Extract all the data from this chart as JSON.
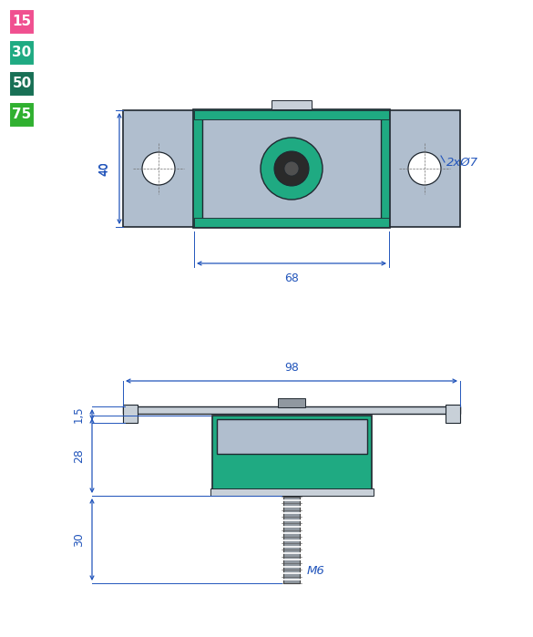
{
  "colors": {
    "steel_blue": "#b0bece",
    "steel_mid": "#8898a8",
    "teal_green": "#1faa82",
    "teal_dark": "#178a68",
    "gray_light": "#c8d0d8",
    "gray_mid": "#9098a0",
    "bolt_gray": "#909090",
    "dim_blue": "#2255bb",
    "bg": "#ffffff",
    "outline": "#202830"
  },
  "legend": [
    {
      "val": "15",
      "color": "#f05090"
    },
    {
      "val": "30",
      "color": "#1faa82"
    },
    {
      "val": "50",
      "color": "#187055"
    },
    {
      "val": "75",
      "color": "#30b030"
    }
  ]
}
